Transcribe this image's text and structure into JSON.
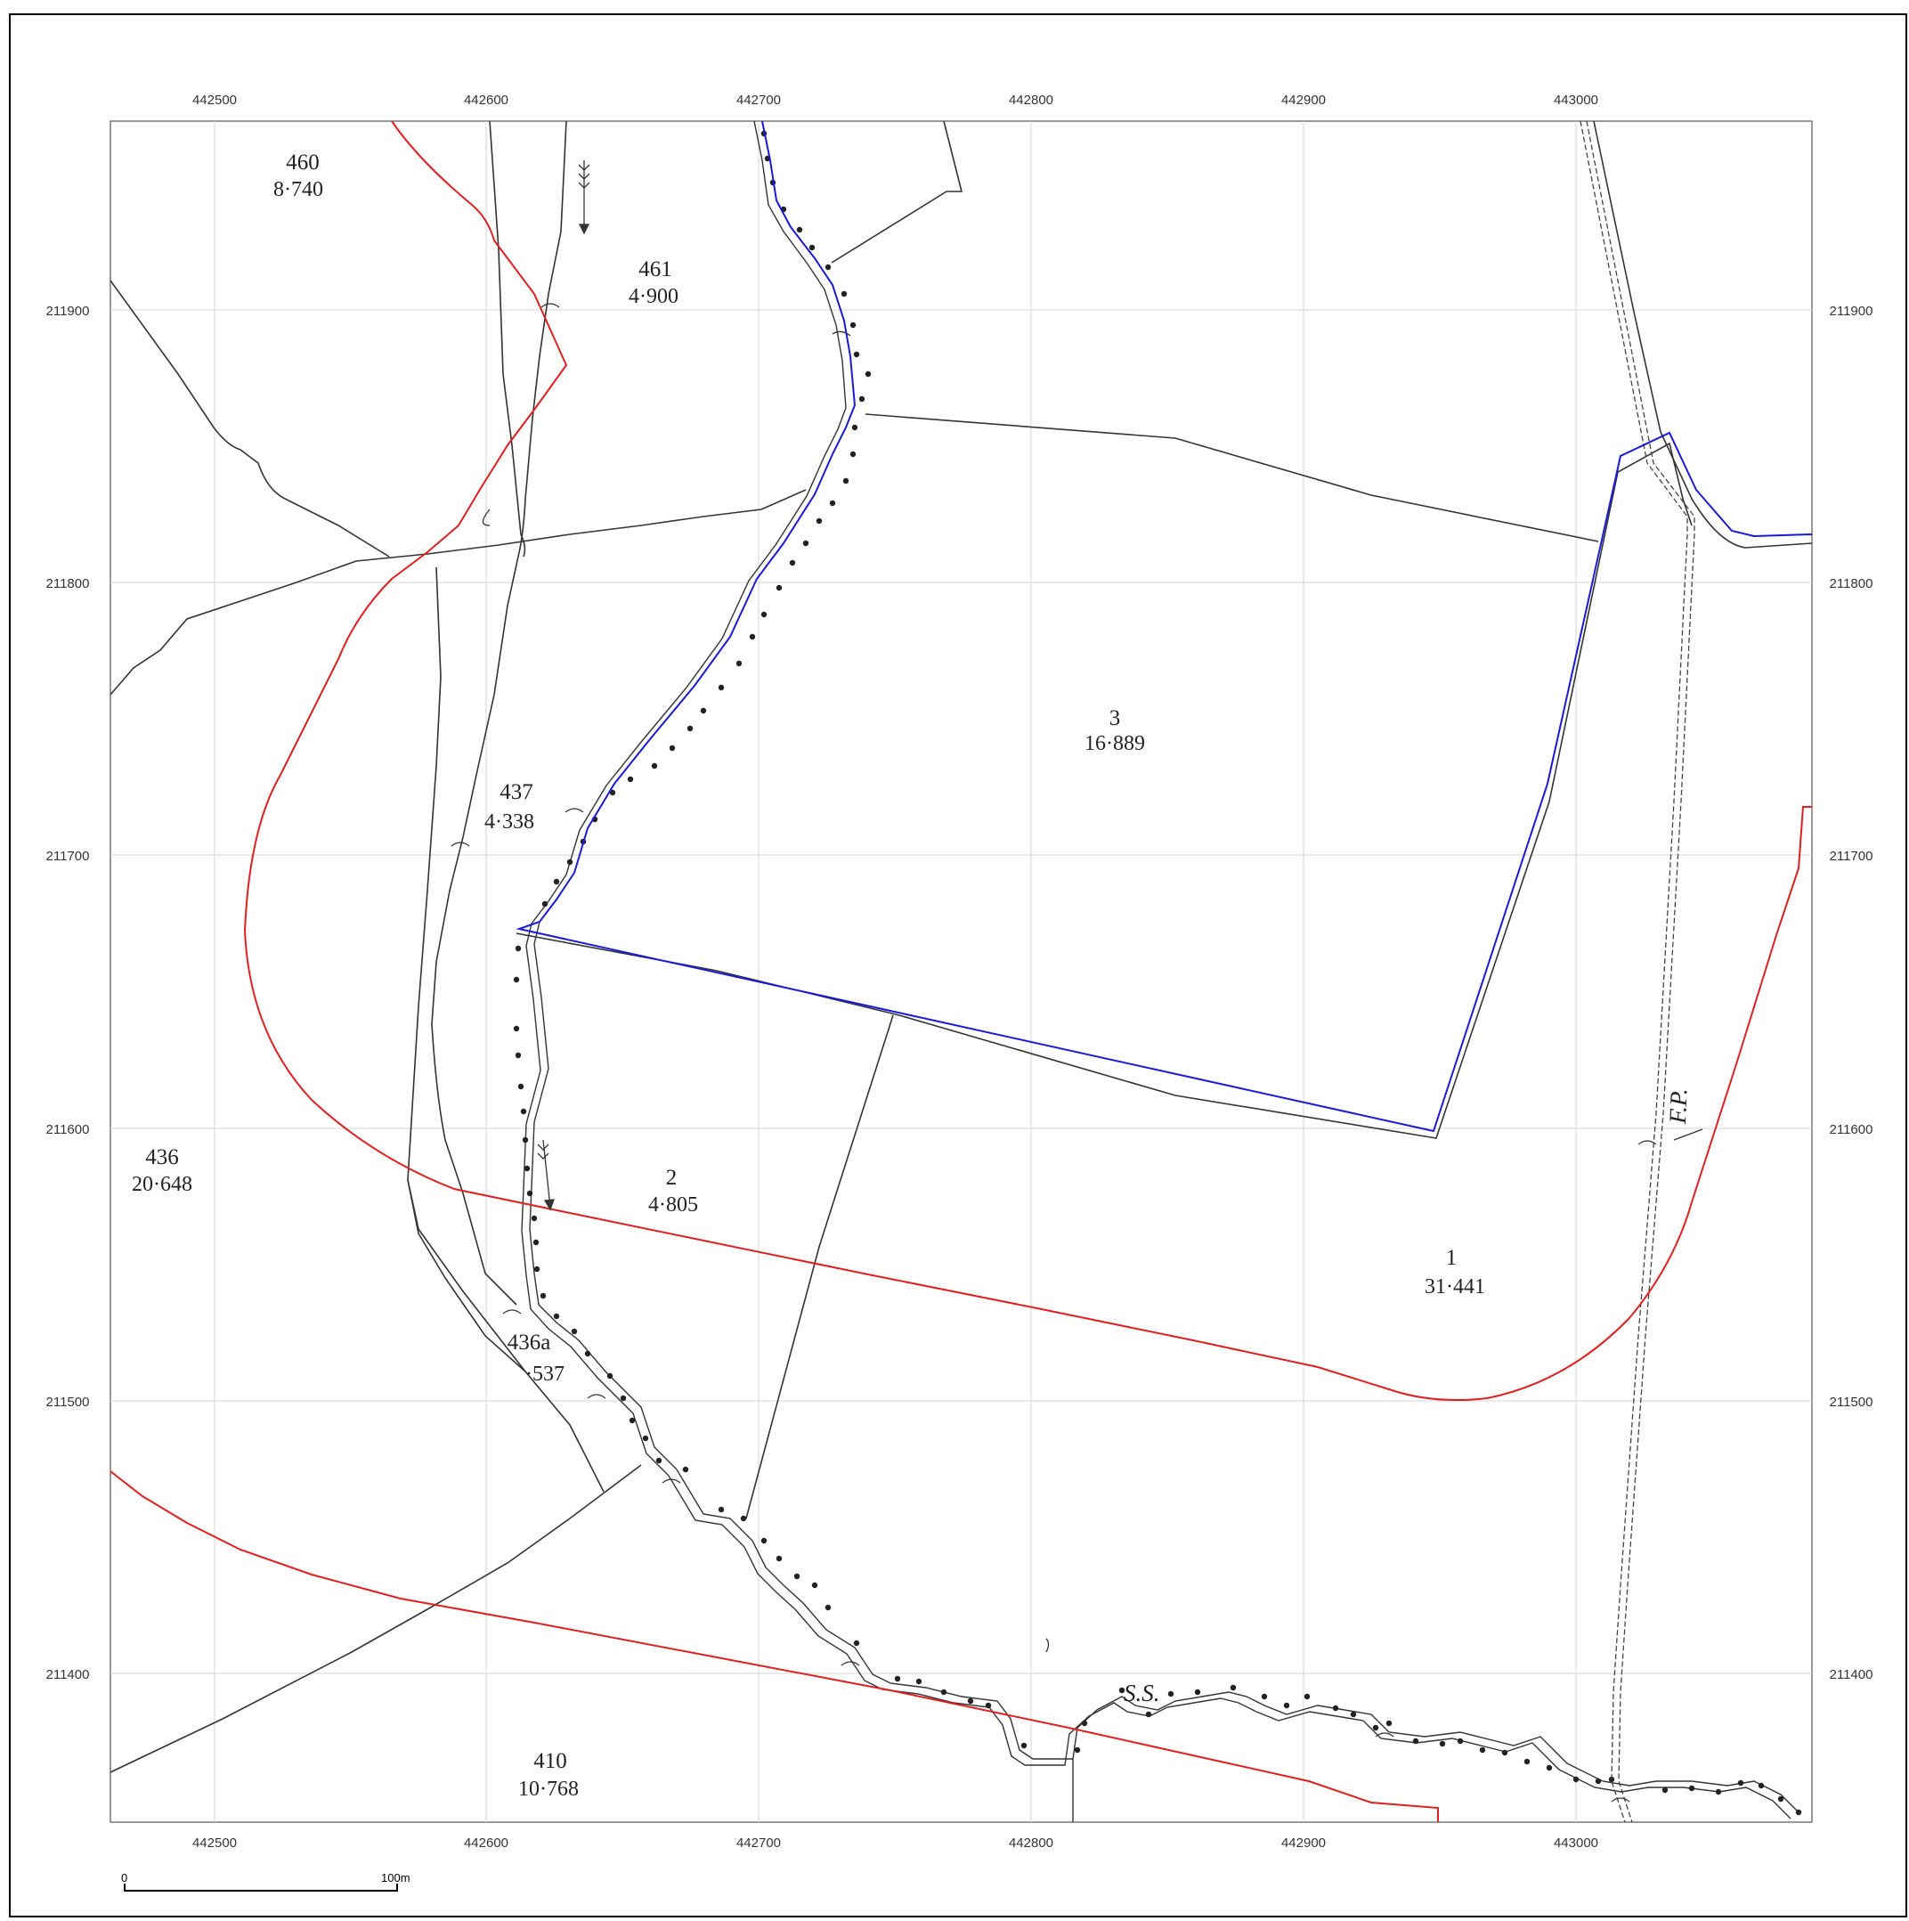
{
  "map": {
    "x_ticks": [
      "442500",
      "442600",
      "442700",
      "442800",
      "442900",
      "443000"
    ],
    "y_ticks": [
      "211900",
      "211800",
      "211700",
      "211600",
      "211500",
      "211400"
    ],
    "parcels": [
      {
        "id": "460",
        "area": "8·740"
      },
      {
        "id": "461",
        "area": "4·900"
      },
      {
        "id": "437",
        "area": "4·338"
      },
      {
        "id": "3",
        "area": "16·889"
      },
      {
        "id": "436",
        "area": "20·648"
      },
      {
        "id": "2",
        "area": "4·805"
      },
      {
        "id": "1",
        "area": "31·441"
      },
      {
        "id": "436a",
        "area": "·537"
      },
      {
        "id": "410",
        "area": "10·768"
      }
    ],
    "annotations": {
      "ss": "S.S.",
      "fp": "F.P."
    },
    "scale": {
      "start": "0",
      "end": "100m"
    },
    "colors": {
      "boundary_red": "#e02020",
      "site_blue": "#1a1ad8",
      "line": "#333333",
      "grid": "#d4d4d4"
    }
  }
}
